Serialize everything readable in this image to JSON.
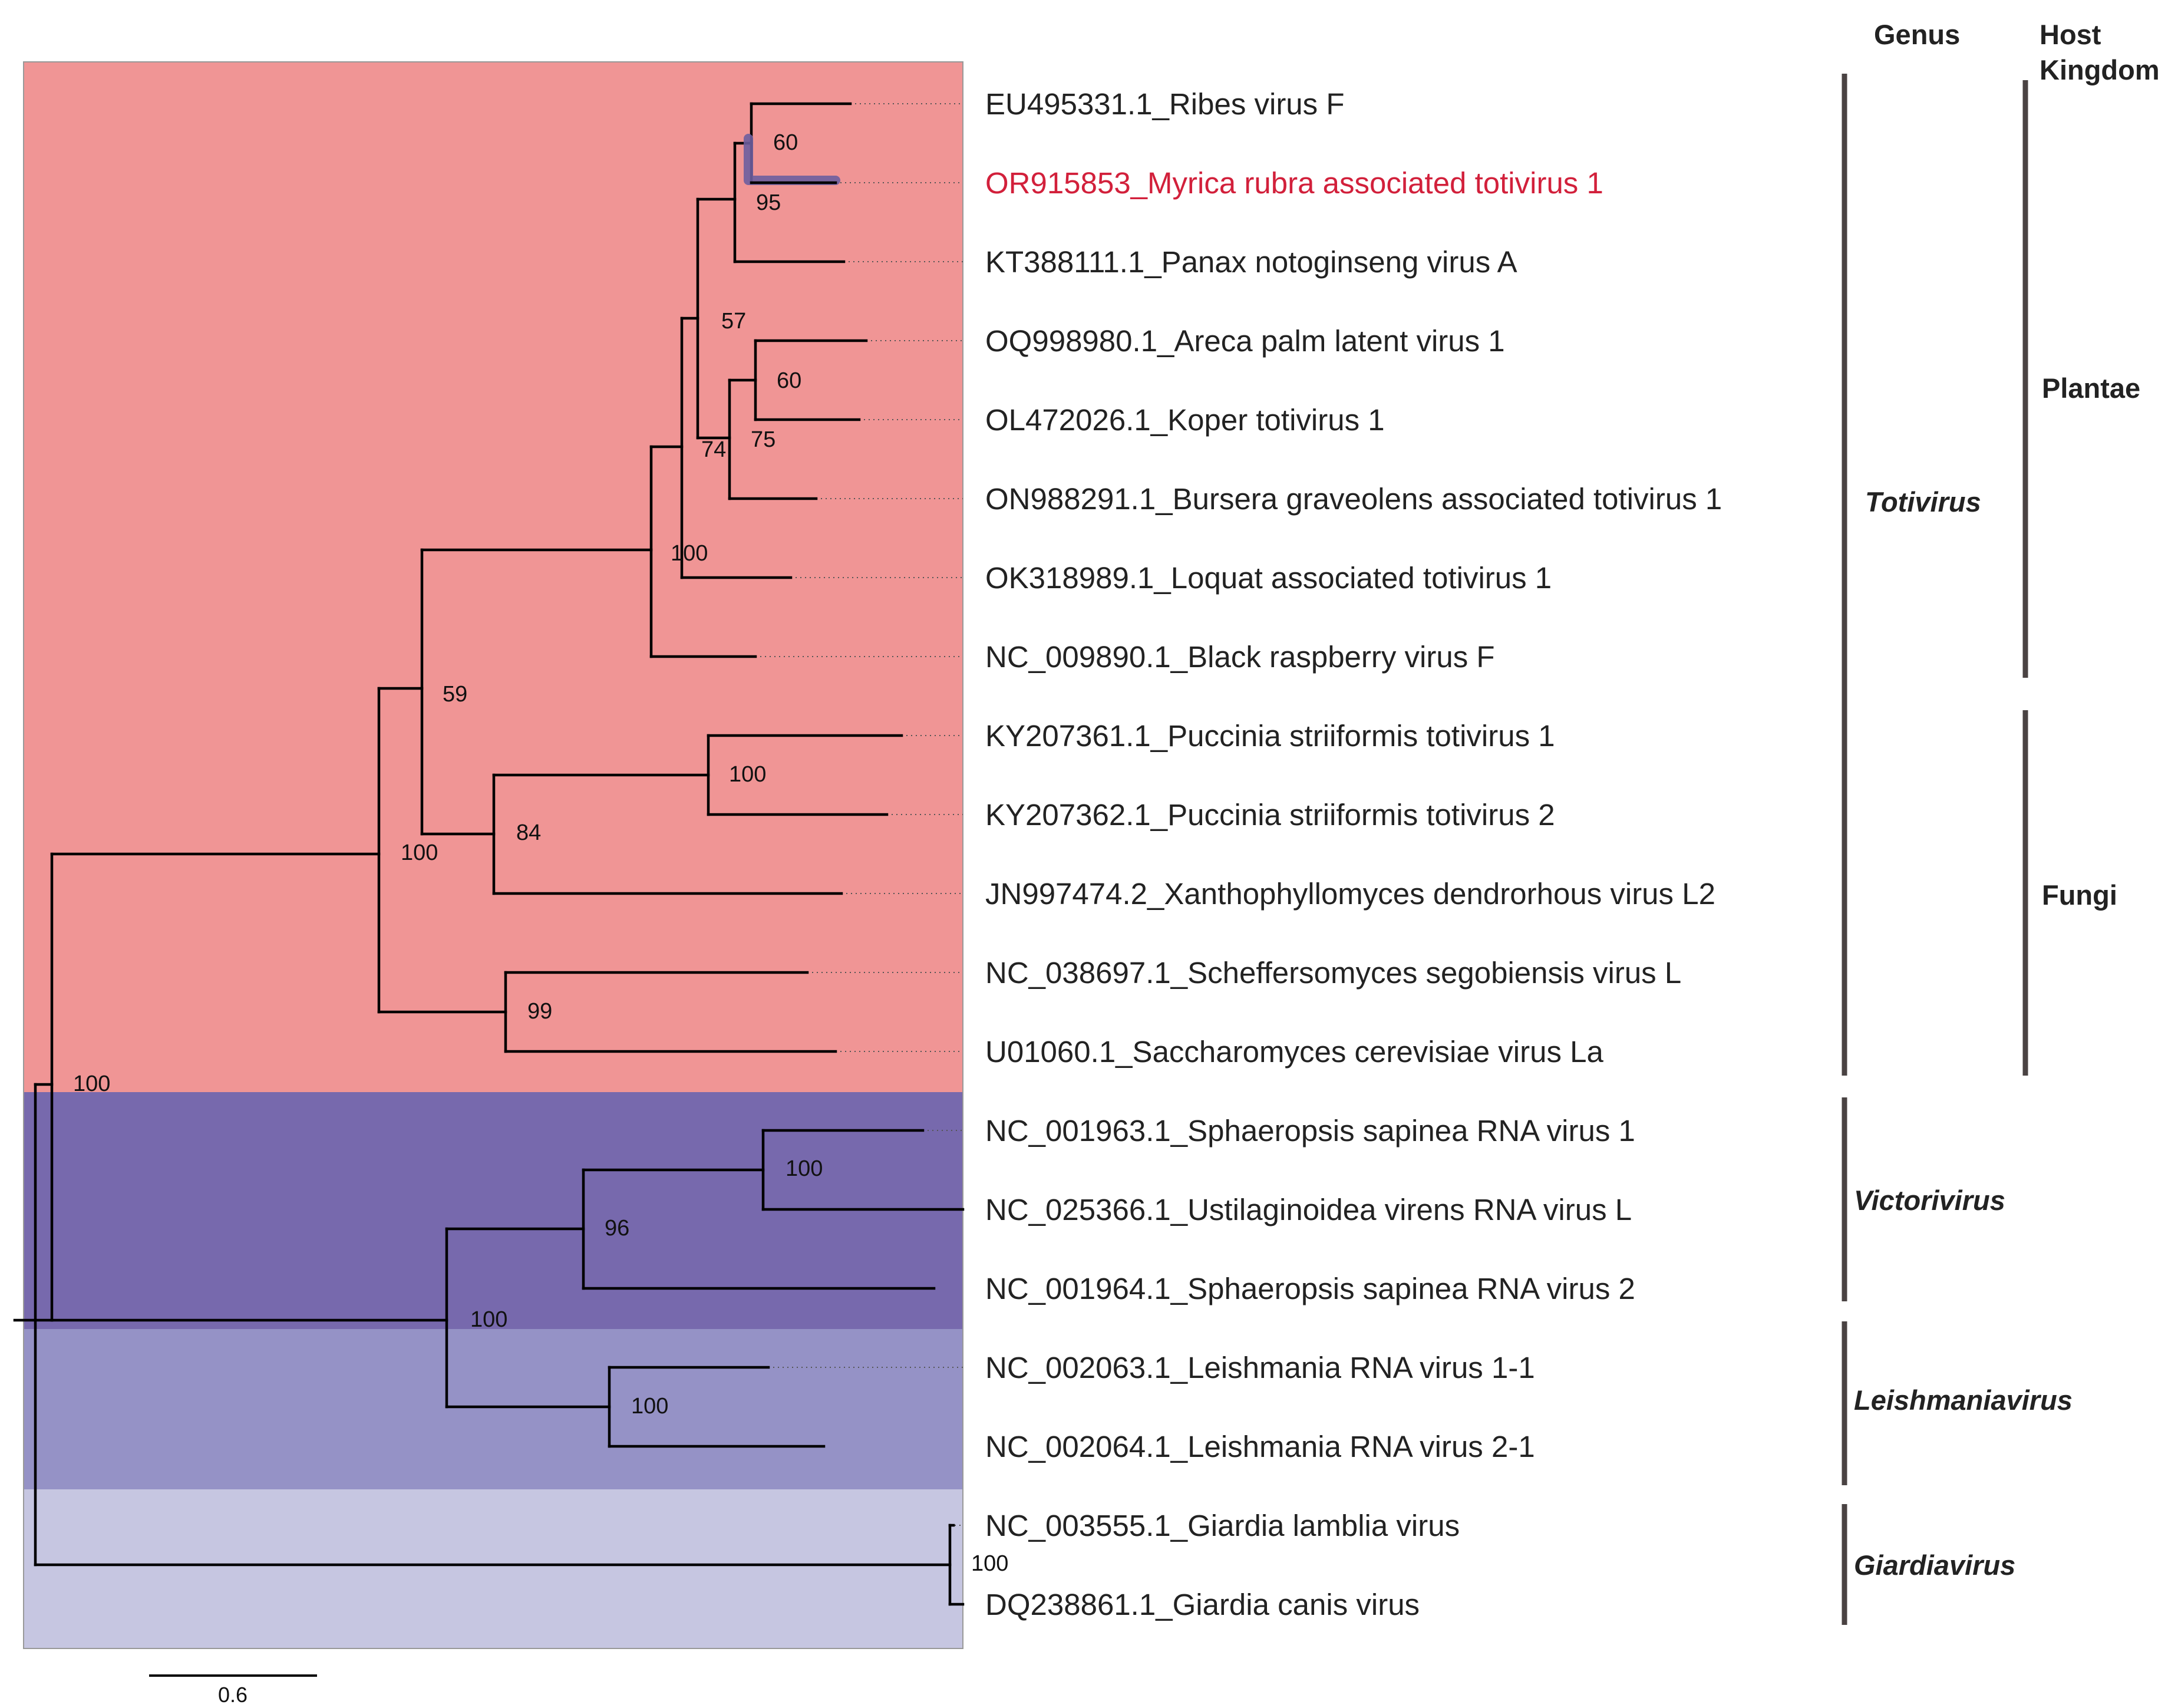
{
  "tips": [
    {
      "label": "EU495331.1_Ribes virus F",
      "highlight": false
    },
    {
      "label": "OR915853_Myrica rubra associated totivirus 1",
      "highlight": true
    },
    {
      "label": "KT388111.1_Panax notoginseng virus A",
      "highlight": false
    },
    {
      "label": "OQ998980.1_Areca palm latent virus 1",
      "highlight": false
    },
    {
      "label": "OL472026.1_Koper totivirus 1",
      "highlight": false
    },
    {
      "label": "ON988291.1_Bursera graveolens associated totivirus 1",
      "highlight": false
    },
    {
      "label": "OK318989.1_Loquat associated totivirus 1",
      "highlight": false
    },
    {
      "label": "NC_009890.1_Black raspberry virus F",
      "highlight": false
    },
    {
      "label": "KY207361.1_Puccinia striiformis totivirus 1",
      "highlight": false
    },
    {
      "label": "KY207362.1_Puccinia striiformis totivirus 2",
      "highlight": false
    },
    {
      "label": "JN997474.2_Xanthophyllomyces dendrorhous virus L2",
      "highlight": false
    },
    {
      "label": "NC_038697.1_Scheffersomyces segobiensis virus L",
      "highlight": false
    },
    {
      "label": "U01060.1_Saccharomyces cerevisiae virus La",
      "highlight": false
    },
    {
      "label": "NC_001963.1_Sphaeropsis sapinea RNA virus 1",
      "highlight": false
    },
    {
      "label": "NC_025366.1_Ustilaginoidea virens RNA virus L",
      "highlight": false
    },
    {
      "label": "NC_001964.1_Sphaeropsis sapinea RNA virus 2",
      "highlight": false
    },
    {
      "label": "NC_002063.1_Leishmania RNA virus 1-1",
      "highlight": false
    },
    {
      "label": "NC_002064.1_Leishmania RNA virus 2-1",
      "highlight": false
    },
    {
      "label": "NC_003555.1_Giardia lamblia virus",
      "highlight": false
    },
    {
      "label": "DQ238861.1_Giardia canis virus",
      "highlight": false
    }
  ],
  "bootstrap": [
    "60",
    "95",
    "57",
    "60",
    "75",
    "74",
    "100",
    "59",
    "100",
    "84",
    "100",
    "99",
    "100",
    "100",
    "96",
    "100",
    "100",
    "100"
  ],
  "headers": {
    "genus": "Genus",
    "host_line1": "Host",
    "host_line2": "Kingdom"
  },
  "genera": [
    {
      "name": "Totivirus",
      "tips": "1-13"
    },
    {
      "name": "Victorivirus",
      "tips": "14-16"
    },
    {
      "name": "Leishmaniavirus",
      "tips": "17-18"
    },
    {
      "name": "Giardiavirus",
      "tips": "19-20"
    }
  ],
  "kingdoms": [
    {
      "name": "Plantae",
      "tips": "1-8"
    },
    {
      "name": "Fungi",
      "tips": "9-13"
    }
  ],
  "scale_bar": {
    "label": "0.6"
  },
  "colors": {
    "totivirus_bg": "#f09595",
    "victorivirus_bg": "#7769ad",
    "leishmaniavirus_bg": "#9592c6",
    "giardiavirus_bg": "#c6c6e1",
    "highlight_text": "#d2203b",
    "highlight_branch": "#6d5e9e"
  }
}
